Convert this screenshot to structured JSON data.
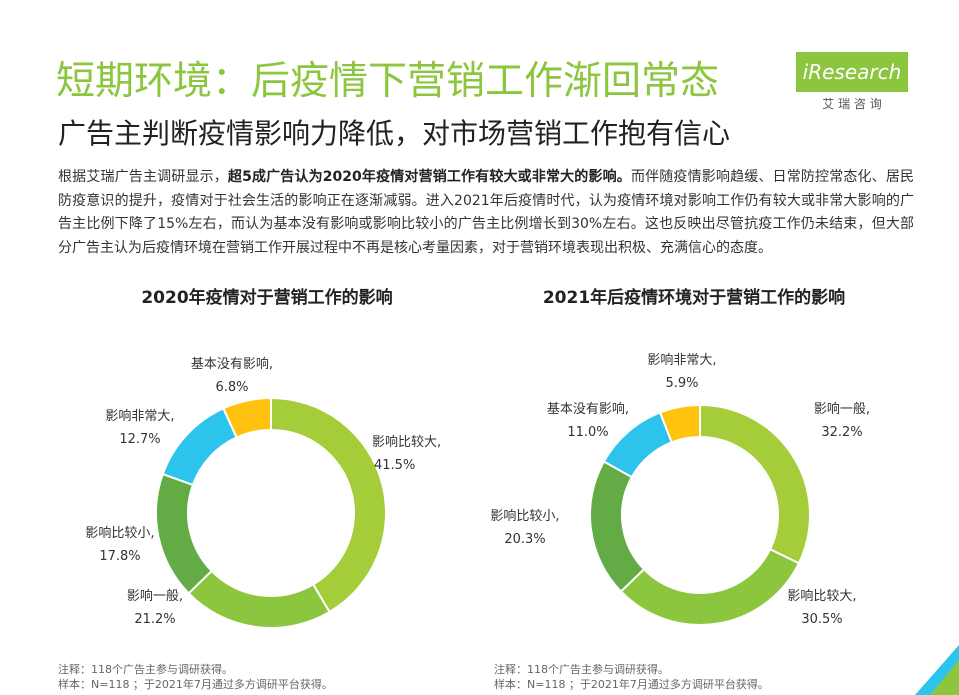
{
  "header": {
    "title": "短期环境：后疫情下营销工作渐回常态",
    "subtitle": "广告主判断疫情影响力降低，对市场营销工作抱有信心",
    "logo": "iResearch",
    "logo_sub": "艾 瑞 咨 询"
  },
  "body": [
    {
      "text": "根据艾瑞广告主调研显示，",
      "bold": false
    },
    {
      "text": "超5成广告认为2020年疫情对营销工作有较大或非常大的影响。",
      "bold": true
    },
    {
      "text": "而伴随疫情影响趋缓、日常防控常态化、居民防疫意识的提升，疫情对于社会生活的影响正在逐渐减弱。进入2021年后疫情时代，认为疫情环境对影响工作仍有较大或非常大影响的广告主比例下降了15%左右，而认为基本没有影响或影响比较小的广告主比例增长到30%左右。这也反映出尽管抗疫工作仍未结束，但大部分广告主认为后疫情环境在营销工作开展过程中不再是核心考量因素，对于营销环境表现出积极、充满信心的态度。",
      "bold": false
    }
  ],
  "chart_data": [
    {
      "type": "pie",
      "title": "2020年疫情对于营销工作的影响",
      "categories": [
        "影响比较大,",
        "影响一般,",
        "影响比较小,",
        "影响非常大,",
        "基本没有影响,"
      ],
      "values": [
        41.5,
        21.2,
        17.8,
        12.7,
        6.8
      ],
      "value_labels": [
        "41.5%",
        "21.2%",
        "17.8%",
        "12.7%",
        "6.8%"
      ],
      "colors": [
        "#a5cd39",
        "#8cc63f",
        "#62ab45",
        "#2cc4ec",
        "#ffc20e"
      ],
      "notes": [
        "注释：118个广告主参与调研获得。",
        "样本：N=118 ；于2021年7月通过多方调研平台获得。"
      ]
    },
    {
      "type": "pie",
      "title": "2021年后疫情环境对于营销工作的影响",
      "categories": [
        "影响一般,",
        "影响比较大,",
        "影响比较小,",
        "基本没有影响,",
        "影响非常大,"
      ],
      "values": [
        32.2,
        30.5,
        20.3,
        11,
        5.9
      ],
      "value_labels": [
        "32.2%",
        "30.5%",
        "20.3%",
        "11.0%",
        "5.9%"
      ],
      "colors": [
        "#a5cd39",
        "#8cc63f",
        "#62ab45",
        "#2cc4ec",
        "#ffc20e"
      ],
      "notes": [
        "注释：118个广告主参与调研获得。",
        "样本：N=118 ；于2021年7月通过多方调研平台获得。"
      ]
    }
  ]
}
